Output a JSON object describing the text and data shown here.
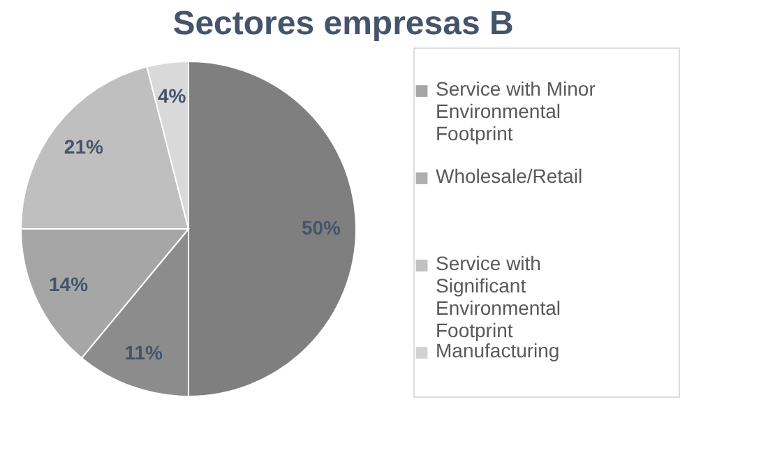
{
  "chart_data": {
    "type": "pie",
    "title": "Sectores empresas B",
    "categories": [
      "Service with Minor Environmental Footprint",
      "Wholesale/Retail",
      "Service with Significant Environmental Footprint",
      "Manufacturing",
      null
    ],
    "values": [
      50,
      11,
      14,
      21,
      4
    ],
    "value_labels": [
      "50%",
      "11%",
      "14%",
      "21%",
      "4%"
    ],
    "colors": [
      "#7f7f7f",
      "#8c8c8c",
      "#a6a6a6",
      "#bfbfbf",
      "#d9d9d9"
    ],
    "legend": "right"
  }
}
